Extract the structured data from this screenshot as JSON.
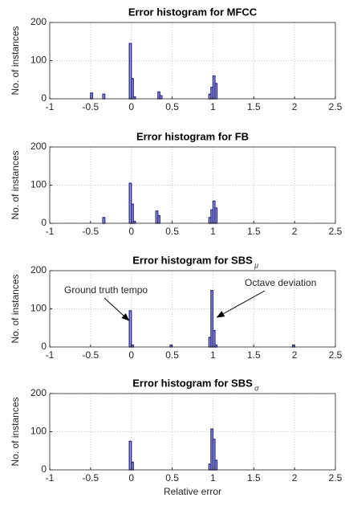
{
  "chart_data": [
    {
      "type": "histogram",
      "title": "Error histogram for MFCC",
      "ylabel": "No. of instances",
      "bins": [
        -1,
        -0.5,
        -0.475,
        -0.35,
        -0.325,
        -0.025,
        0,
        0.025,
        0.05,
        0.325,
        0.35,
        0.375,
        0.95,
        0.975,
        1,
        1.025,
        1.05,
        2.5
      ],
      "counts": [
        0,
        15,
        0,
        12,
        0,
        145,
        53,
        5,
        0,
        18,
        8,
        0,
        12,
        30,
        60,
        40,
        0
      ],
      "color": "#2b2b8f",
      "xlim": [
        -1,
        2.5
      ],
      "ylim": [
        0,
        200
      ],
      "xticks": [
        -1,
        -0.5,
        0,
        0.5,
        1,
        1.5,
        2,
        2.5
      ],
      "yticks": [
        0,
        100,
        200
      ],
      "grid": true
    },
    {
      "type": "histogram",
      "title": "Error histogram for FB",
      "ylabel": "No. of instances",
      "bins": [
        -1,
        -0.35,
        -0.325,
        -0.025,
        0,
        0.025,
        0.05,
        0.3,
        0.325,
        0.35,
        0.95,
        0.975,
        1,
        1.025,
        1.05,
        2.5
      ],
      "counts": [
        0,
        15,
        0,
        105,
        50,
        5,
        0,
        32,
        20,
        0,
        15,
        35,
        58,
        40,
        0
      ],
      "color": "#2b2b8f",
      "xlim": [
        -1,
        2.5
      ],
      "ylim": [
        0,
        200
      ],
      "xticks": [
        -1,
        -0.5,
        0,
        0.5,
        1,
        1.5,
        2,
        2.5
      ],
      "yticks": [
        0,
        100,
        200
      ],
      "grid": true
    },
    {
      "type": "histogram",
      "title": "Error histogram for SBS",
      "title_subscript": "μ",
      "ylabel": "No. of instances",
      "bins": [
        -1,
        -0.025,
        0,
        0.025,
        0.475,
        0.5,
        0.95,
        0.975,
        1,
        1.025,
        1.05,
        1.975,
        2,
        2.5
      ],
      "counts": [
        0,
        95,
        5,
        0,
        5,
        0,
        25,
        148,
        43,
        5,
        0,
        5,
        0
      ],
      "color": "#2b2b8f",
      "xlim": [
        -1,
        2.5
      ],
      "ylim": [
        0,
        200
      ],
      "xticks": [
        -1,
        -0.5,
        0,
        0.5,
        1,
        1.5,
        2,
        2.5
      ],
      "yticks": [
        0,
        100,
        200
      ],
      "grid": true,
      "annotations": [
        "Ground truth tempo",
        "Octave deviation"
      ]
    },
    {
      "type": "histogram",
      "title": "Error histogram for SBS",
      "title_subscript": "σ",
      "ylabel": "No. of instances",
      "xlabel": "Relative error",
      "bins": [
        -1,
        -0.025,
        0,
        0.025,
        0.95,
        0.975,
        1,
        1.025,
        1.05,
        2.5
      ],
      "counts": [
        0,
        75,
        20,
        0,
        15,
        107,
        80,
        25,
        0
      ],
      "color": "#2b2b8f",
      "xlim": [
        -1,
        2.5
      ],
      "ylim": [
        0,
        200
      ],
      "xticks": [
        -1,
        -0.5,
        0,
        0.5,
        1,
        1.5,
        2,
        2.5
      ],
      "yticks": [
        0,
        100,
        200
      ],
      "grid": true
    }
  ]
}
